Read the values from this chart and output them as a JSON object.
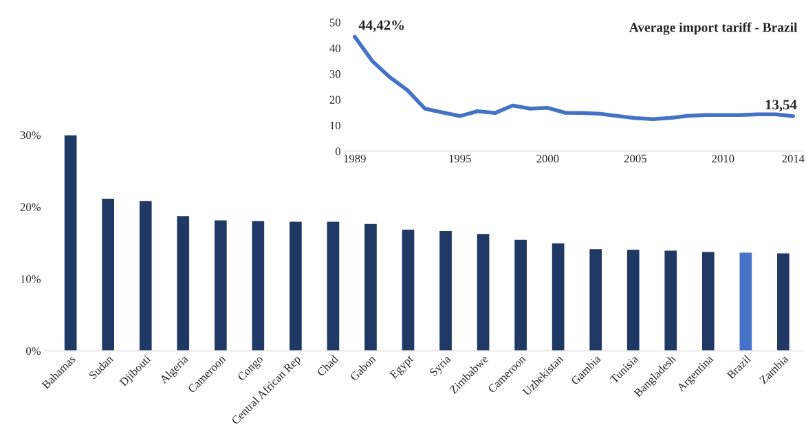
{
  "chart_data": [
    {
      "type": "bar",
      "categories": [
        "Bahamas",
        "Sudan",
        "Djibouti",
        "Algeria",
        "Cameroon",
        "Congo",
        "Central African Rep",
        "Chad",
        "Gabon",
        "Egypt",
        "Syria",
        "Zimbabwe",
        "Cameroon",
        "Uzbekistan",
        "Gambia",
        "Tunisia",
        "Bangladesh",
        "Argentina",
        "Brazil",
        "Zambia"
      ],
      "values": [
        30.0,
        21.2,
        20.9,
        18.8,
        18.2,
        18.1,
        18.0,
        18.0,
        17.7,
        16.9,
        16.7,
        16.3,
        15.5,
        15.0,
        14.2,
        14.1,
        14.0,
        13.8,
        13.7,
        13.6
      ],
      "colors": [
        "#1f3864",
        "#1f3864",
        "#1f3864",
        "#1f3864",
        "#1f3864",
        "#1f3864",
        "#1f3864",
        "#1f3864",
        "#1f3864",
        "#1f3864",
        "#1f3864",
        "#1f3864",
        "#1f3864",
        "#1f3864",
        "#1f3864",
        "#1f3864",
        "#1f3864",
        "#1f3864",
        "#4472c4",
        "#1f3864"
      ],
      "ylim": [
        0,
        30
      ],
      "yticks": [
        {
          "value": 0,
          "label": "0%"
        },
        {
          "value": 10,
          "label": "10%"
        },
        {
          "value": 20,
          "label": "20%"
        },
        {
          "value": 30,
          "label": "30%"
        }
      ],
      "grid": false
    },
    {
      "type": "line",
      "title": "Average import tariff - Brazil",
      "x": [
        1989,
        1990,
        1991,
        1992,
        1993,
        1994,
        1995,
        1996,
        1997,
        1998,
        1999,
        2000,
        2001,
        2002,
        2003,
        2004,
        2005,
        2006,
        2007,
        2008,
        2009,
        2010,
        2011,
        2012,
        2013,
        2014
      ],
      "series": [
        {
          "color": "#4472c4",
          "values": [
            44.42,
            35.0,
            28.7,
            23.7,
            16.5,
            15.0,
            13.6,
            15.5,
            14.8,
            17.7,
            16.5,
            16.8,
            14.9,
            14.8,
            14.5,
            13.6,
            12.8,
            12.4,
            12.9,
            13.7,
            14.0,
            14.0,
            14.0,
            14.3,
            14.3,
            13.54
          ]
        }
      ],
      "xlim": [
        1988.4,
        2014.5
      ],
      "xticks": [
        1989,
        1995,
        2000,
        2005,
        2010,
        2014
      ],
      "ylim": [
        0,
        50
      ],
      "yticks": [
        0,
        10,
        20,
        30,
        40,
        50
      ],
      "annotations": [
        {
          "text": "44,42%",
          "x": 1989,
          "y": 44.42
        },
        {
          "text": "13,54",
          "x": 2014,
          "y": 13.54
        }
      ],
      "grid": false,
      "line_style": "solid",
      "marker": "none"
    }
  ]
}
